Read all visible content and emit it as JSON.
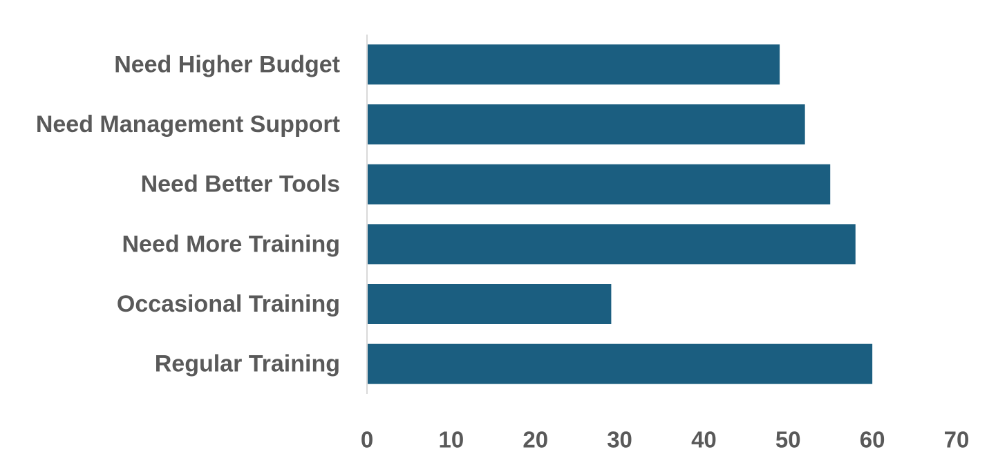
{
  "chart_data": {
    "type": "bar",
    "orientation": "horizontal",
    "title": "",
    "xlabel": "",
    "ylabel": "",
    "categories": [
      "Need Higher Budget",
      "Need Management Support",
      "Need Better Tools",
      "Need More Training",
      "Occasional Training",
      "Regular Training"
    ],
    "values": [
      49,
      52,
      55,
      58,
      29,
      60
    ],
    "xlim": [
      0,
      70
    ],
    "xticks": [
      "0",
      "10",
      "20",
      "30",
      "40",
      "50",
      "60",
      "70"
    ],
    "grid": false,
    "legend": "none",
    "bar_color": "#1b5e80",
    "text_color": "#595959",
    "axis_color": "#d9d9d9"
  }
}
